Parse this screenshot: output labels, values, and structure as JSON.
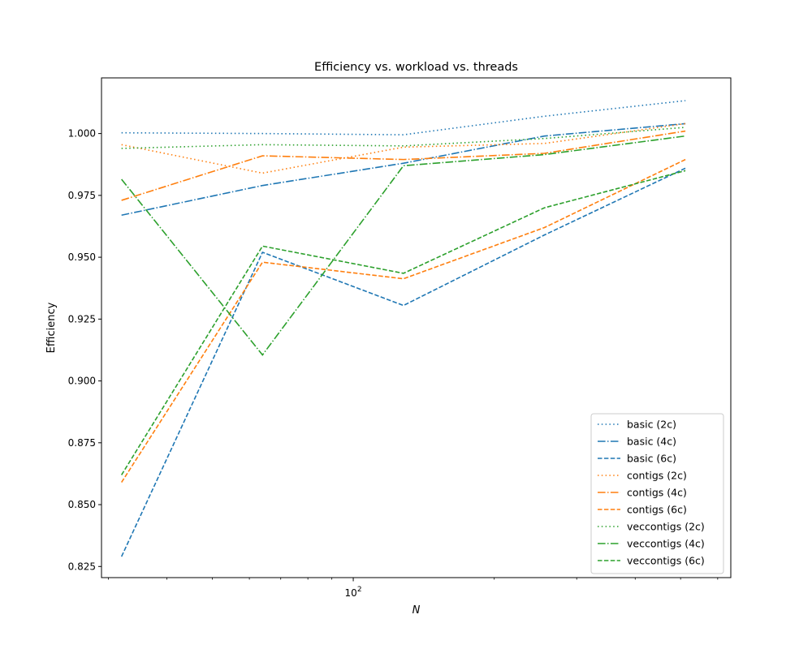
{
  "chart_data": {
    "type": "line",
    "title": "Efficiency vs. workload vs. threads",
    "xlabel": "N",
    "ylabel": "Efficiency",
    "xscale": "log",
    "xlim": [
      29,
      640
    ],
    "ylim": [
      0.8205,
      1.0225
    ],
    "x": [
      32,
      64,
      128,
      256,
      512
    ],
    "x_tick_label": "10^2",
    "y_ticks": [
      "0.825",
      "0.850",
      "0.875",
      "0.900",
      "0.925",
      "0.950",
      "0.975",
      "1.000"
    ],
    "grid": false,
    "legend_position": "lower right",
    "series": [
      {
        "name": "basic (2c)",
        "color": "#1f77b4",
        "dash": "dotted",
        "values": [
          1.0003,
          1.0,
          0.9995,
          1.007,
          1.0133
        ]
      },
      {
        "name": "basic (4c)",
        "color": "#1f77b4",
        "dash": "dashdot",
        "values": [
          0.967,
          0.979,
          0.988,
          0.999,
          1.004
        ]
      },
      {
        "name": "basic (6c)",
        "color": "#1f77b4",
        "dash": "dashed",
        "values": [
          0.829,
          0.952,
          0.9305,
          0.959,
          0.986
        ]
      },
      {
        "name": "contigs (2c)",
        "color": "#ff7f0e",
        "dash": "dotted",
        "values": [
          0.9955,
          0.984,
          0.9945,
          0.996,
          1.004
        ]
      },
      {
        "name": "contigs (4c)",
        "color": "#ff7f0e",
        "dash": "dashdot",
        "values": [
          0.973,
          0.991,
          0.9895,
          0.992,
          1.001
        ]
      },
      {
        "name": "contigs (6c)",
        "color": "#ff7f0e",
        "dash": "dashed",
        "values": [
          0.859,
          0.948,
          0.9413,
          0.962,
          0.9895
        ]
      },
      {
        "name": "veccontigs (2c)",
        "color": "#2ca02c",
        "dash": "dotted",
        "values": [
          0.994,
          0.9955,
          0.995,
          0.998,
          1.0025
        ]
      },
      {
        "name": "veccontigs (4c)",
        "color": "#2ca02c",
        "dash": "dashdot",
        "values": [
          0.9815,
          0.9105,
          0.987,
          0.9915,
          0.999
        ]
      },
      {
        "name": "veccontigs (6c)",
        "color": "#2ca02c",
        "dash": "dashed",
        "values": [
          0.862,
          0.9545,
          0.9435,
          0.97,
          0.985
        ]
      }
    ]
  }
}
